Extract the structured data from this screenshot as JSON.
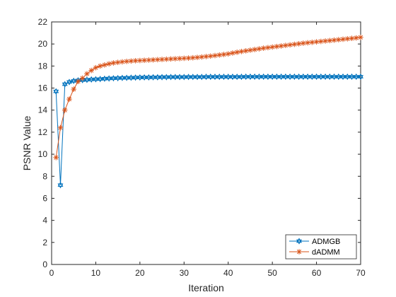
{
  "chart_data": {
    "type": "line",
    "title": "",
    "xlabel": "Iteration",
    "ylabel": "PSNR Value",
    "xlim": [
      0,
      70
    ],
    "ylim": [
      0,
      22
    ],
    "xticks": [
      0,
      10,
      20,
      30,
      40,
      50,
      60,
      70
    ],
    "yticks": [
      0,
      2,
      4,
      6,
      8,
      10,
      12,
      14,
      16,
      18,
      20,
      22
    ],
    "grid": false,
    "legend_position": "bottom-right",
    "x": [
      1,
      2,
      3,
      4,
      5,
      6,
      7,
      8,
      9,
      10,
      11,
      12,
      13,
      14,
      15,
      16,
      17,
      18,
      19,
      20,
      21,
      22,
      23,
      24,
      25,
      26,
      27,
      28,
      29,
      30,
      31,
      32,
      33,
      34,
      35,
      36,
      37,
      38,
      39,
      40,
      41,
      42,
      43,
      44,
      45,
      46,
      47,
      48,
      49,
      50,
      51,
      52,
      53,
      54,
      55,
      56,
      57,
      58,
      59,
      60,
      61,
      62,
      63,
      64,
      65,
      66,
      67,
      68,
      69,
      70
    ],
    "series": [
      {
        "name": "ADMGB",
        "color": "#0072BD",
        "marker": "hexagram",
        "values": [
          15.7,
          7.2,
          16.35,
          16.55,
          16.65,
          16.7,
          16.72,
          16.75,
          16.78,
          16.8,
          16.82,
          16.85,
          16.87,
          16.89,
          16.9,
          16.92,
          16.93,
          16.94,
          16.95,
          16.96,
          16.97,
          16.97,
          16.98,
          16.98,
          16.99,
          16.99,
          17.0,
          17.0,
          17.0,
          17.0,
          17.01,
          17.01,
          17.01,
          17.01,
          17.02,
          17.02,
          17.02,
          17.02,
          17.02,
          17.02,
          17.02,
          17.02,
          17.02,
          17.03,
          17.03,
          17.03,
          17.03,
          17.03,
          17.03,
          17.03,
          17.03,
          17.03,
          17.03,
          17.03,
          17.03,
          17.03,
          17.03,
          17.03,
          17.03,
          17.03,
          17.03,
          17.03,
          17.03,
          17.03,
          17.03,
          17.03,
          17.03,
          17.03,
          17.03,
          17.03
        ]
      },
      {
        "name": "dADMM",
        "color": "#D95319",
        "marker": "asterisk",
        "values": [
          9.7,
          12.4,
          14.0,
          15.0,
          15.9,
          16.6,
          16.9,
          17.3,
          17.6,
          17.85,
          18.0,
          18.1,
          18.2,
          18.28,
          18.33,
          18.38,
          18.42,
          18.45,
          18.48,
          18.5,
          18.52,
          18.54,
          18.56,
          18.58,
          18.6,
          18.62,
          18.64,
          18.66,
          18.68,
          18.7,
          18.72,
          18.75,
          18.78,
          18.82,
          18.86,
          18.9,
          18.95,
          19.0,
          19.05,
          19.1,
          19.18,
          19.25,
          19.32,
          19.38,
          19.44,
          19.5,
          19.56,
          19.62,
          19.67,
          19.72,
          19.77,
          19.82,
          19.87,
          19.92,
          19.97,
          20.02,
          20.07,
          20.11,
          20.15,
          20.19,
          20.23,
          20.27,
          20.31,
          20.35,
          20.39,
          20.43,
          20.47,
          20.51,
          20.55,
          20.6
        ]
      }
    ]
  }
}
